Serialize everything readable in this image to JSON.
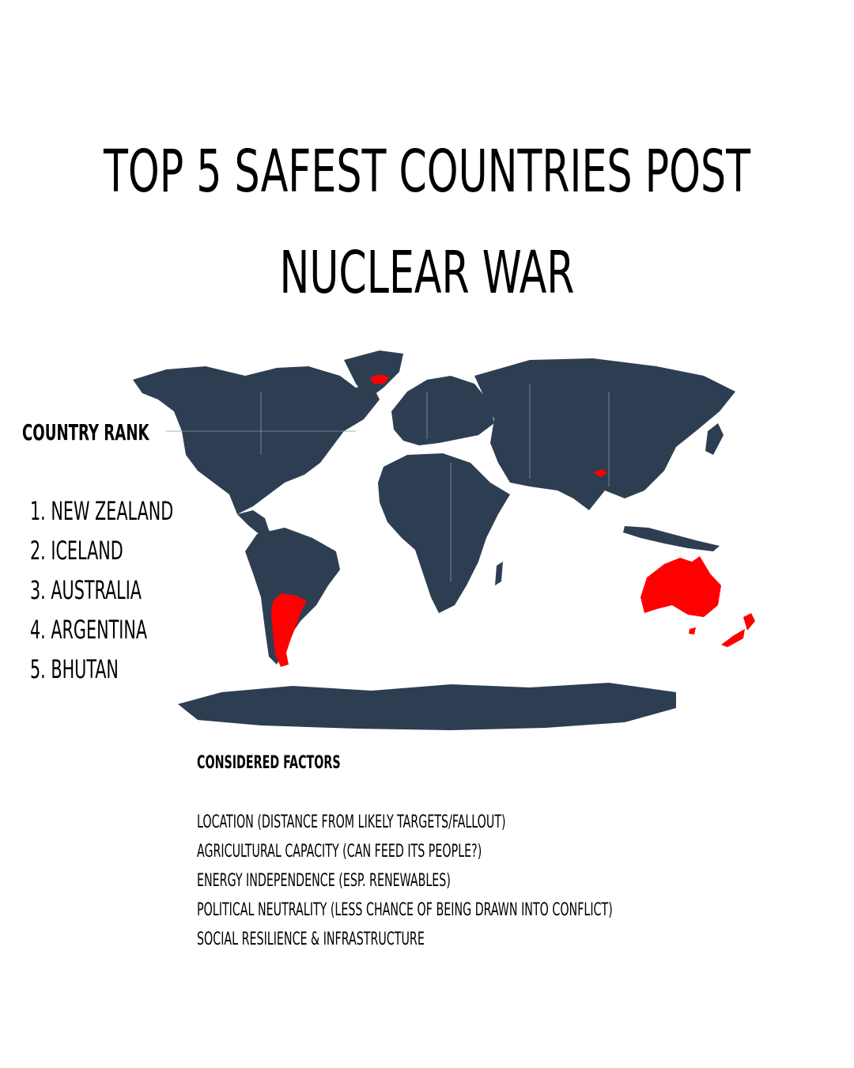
{
  "title": {
    "line1": "TOP 5 SAFEST COUNTRIES POST",
    "line2": "NUCLEAR WAR"
  },
  "ranking": {
    "heading": "COUNTRY RANK",
    "items": [
      "1. NEW ZEALAND",
      "2. ICELAND",
      "3. AUSTRALIA",
      "4. ARGENTINA",
      "5. BHUTAN"
    ]
  },
  "map": {
    "land_color": "#2e3e52",
    "highlight_color": "#ff0000",
    "highlighted_countries": [
      "New Zealand",
      "Iceland",
      "Australia",
      "Argentina",
      "Bhutan"
    ]
  },
  "factors": {
    "heading": "CONSIDERED FACTORS",
    "items": [
      "LOCATION (DISTANCE FROM LIKELY TARGETS/FALLOUT)",
      "AGRICULTURAL CAPACITY (CAN FEED ITS PEOPLE?)",
      "ENERGY INDEPENDENCE (ESP. RENEWABLES)",
      "POLITICAL NEUTRALITY (LESS CHANCE OF BEING DRAWN INTO CONFLICT)",
      "SOCIAL RESILIENCE & INFRASTRUCTURE"
    ]
  }
}
